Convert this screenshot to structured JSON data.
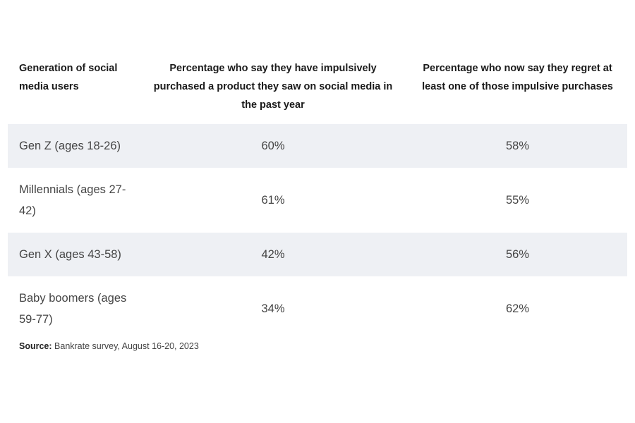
{
  "table": {
    "headers": [
      "Generation of social media users",
      "Percentage who say they have impulsively purchased a product they saw on social media in the past year",
      "Percentage who now say they regret at least one of those impulsive purchases"
    ],
    "rows": [
      {
        "generation": "Gen Z (ages 18-26)",
        "purchased": "60%",
        "regret": "58%"
      },
      {
        "generation": "Millennials (ages 27-42)",
        "purchased": "61%",
        "regret": "55%"
      },
      {
        "generation": "Gen X (ages 43-58)",
        "purchased": "42%",
        "regret": "56%"
      },
      {
        "generation": "Baby boomers (ages 59-77)",
        "purchased": "34%",
        "regret": "62%"
      }
    ]
  },
  "source": {
    "label": "Source:",
    "text": "Bankrate survey, August 16-20, 2023"
  },
  "colors": {
    "row_shade": "#eef0f4",
    "header_text": "#1a1a1a",
    "body_text": "#444444"
  }
}
